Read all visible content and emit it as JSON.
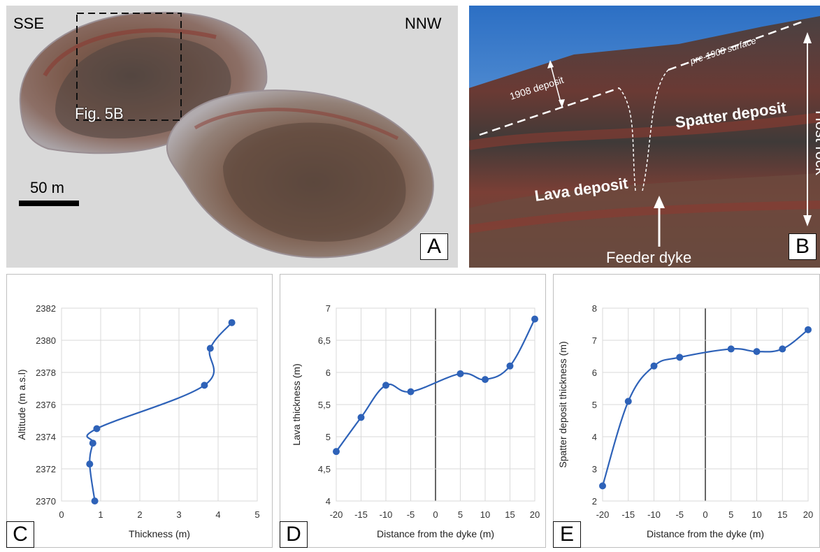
{
  "panel_a": {
    "letter": "A",
    "left_label": "SSE",
    "right_label": "NNW",
    "box_label": "Fig. 5B",
    "scale_label": "50 m",
    "colors": {
      "background": "#d9d9d9"
    }
  },
  "panel_b": {
    "letter": "B",
    "labels": {
      "deposit_1908": "1908 deposit",
      "pre_surface": "pre-1908 surface",
      "spatter": "Spatter deposit",
      "lava": "Lava deposit",
      "host_rock": "Host rock",
      "feeder": "Feeder dyke"
    }
  },
  "charts": [
    {
      "letter": "C",
      "chart_data": {
        "type": "line",
        "xlabel": "Thickness (m)",
        "ylabel": "Altitude (m a.s.l)",
        "xlim": [
          0,
          5
        ],
        "ylim": [
          2370,
          2382
        ],
        "x_ticks": [
          "0",
          "1",
          "2",
          "3",
          "4",
          "5"
        ],
        "y_ticks": [
          "2370",
          "2372",
          "2374",
          "2376",
          "2378",
          "2380",
          "2382"
        ],
        "grid": true,
        "series": [
          {
            "x": [
              0.85,
              0.72,
              0.8,
              0.9,
              3.65,
              3.8,
              4.35
            ],
            "y": [
              2370.0,
              2372.3,
              2373.6,
              2374.5,
              2377.2,
              2379.5,
              2381.1
            ]
          }
        ],
        "color": "#2e62b8"
      }
    },
    {
      "letter": "D",
      "chart_data": {
        "type": "line",
        "xlabel": "Distance from the dyke (m)",
        "ylabel": "Lava thickness (m)",
        "xlim": [
          -20,
          20
        ],
        "ylim": [
          4,
          7
        ],
        "x_ticks": [
          "-20",
          "-15",
          "-10",
          "-5",
          "0",
          "5",
          "10",
          "15",
          "20"
        ],
        "y_ticks": [
          "4",
          "4,5",
          "5",
          "5,5",
          "6",
          "6,5",
          "7"
        ],
        "grid": true,
        "series": [
          {
            "x": [
              -20,
              -15,
              -10,
              -5,
              5,
              10,
              15,
              20
            ],
            "y": [
              4.77,
              5.3,
              5.8,
              5.7,
              5.98,
              5.89,
              6.1,
              6.83
            ]
          }
        ],
        "color": "#2e62b8"
      }
    },
    {
      "letter": "E",
      "chart_data": {
        "type": "line",
        "xlabel": "Distance from the dyke (m)",
        "ylabel": "Spatter deposit thickness (m)",
        "xlim": [
          -20,
          20
        ],
        "ylim": [
          2,
          8
        ],
        "x_ticks": [
          "-20",
          "-15",
          "-10",
          "-5",
          "0",
          "5",
          "10",
          "15",
          "20"
        ],
        "y_ticks": [
          "2",
          "3",
          "4",
          "5",
          "6",
          "7",
          "8"
        ],
        "grid": true,
        "series": [
          {
            "x": [
              -20,
              -15,
              -10,
              -5,
              5,
              10,
              15,
              20
            ],
            "y": [
              2.47,
              5.1,
              6.2,
              6.47,
              6.73,
              6.65,
              6.73,
              7.33
            ]
          }
        ],
        "color": "#2e62b8"
      }
    }
  ]
}
